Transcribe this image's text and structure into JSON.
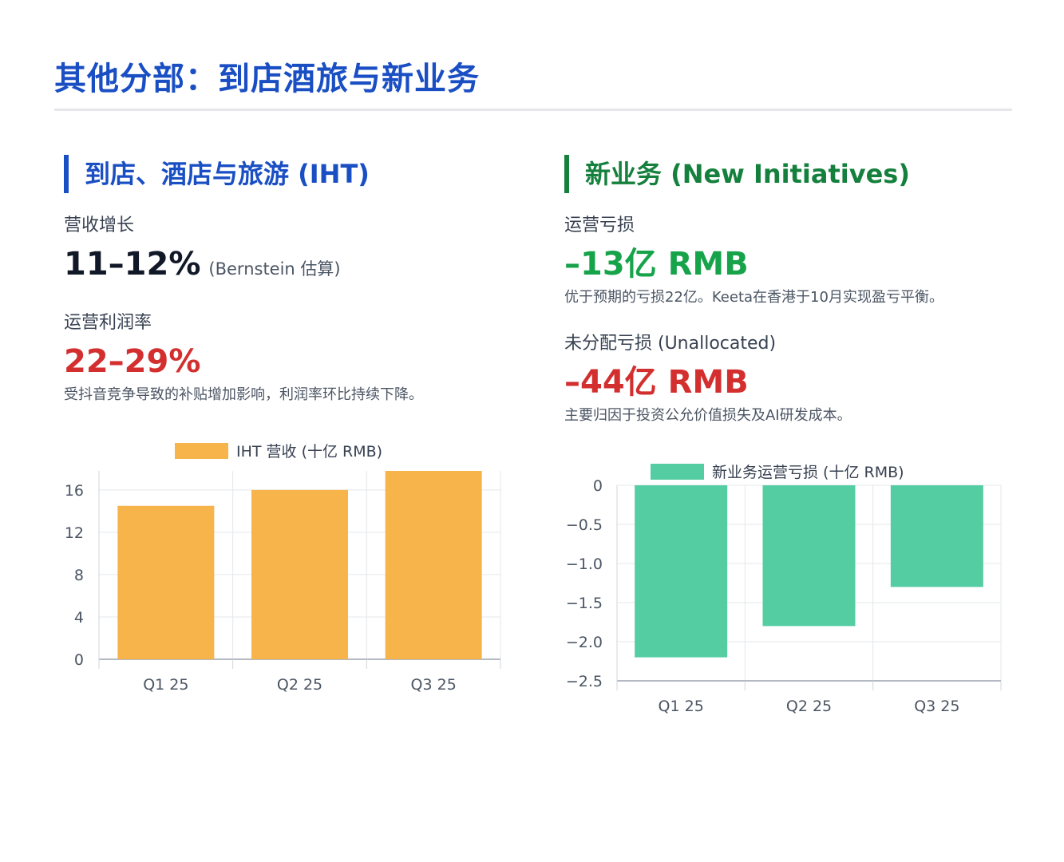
{
  "page": {
    "title": "其他分部：到店酒旅与新业务"
  },
  "iht": {
    "heading": "到店、酒店与旅游 (IHT)",
    "revenue_growth": {
      "label": "营收增长",
      "value": "11–12%",
      "note": "(Bernstein 估算)"
    },
    "op_margin": {
      "label": "运营利润率",
      "value": "22–29%",
      "note": "受抖音竞争导致的补贴增加影响，利润率环比持续下降。"
    }
  },
  "new_initiatives": {
    "heading": "新业务 (New Initiatives)",
    "op_loss": {
      "label": "运营亏损",
      "value": "–13亿 RMB",
      "note": "优于预期的亏损22亿。Keeta在香港于10月实现盈亏平衡。"
    },
    "unallocated": {
      "label": "未分配亏损 (Unallocated)",
      "value": "–44亿 RMB",
      "note": "主要归因于投资公允价值损失及AI研发成本。"
    }
  },
  "colors": {
    "title_blue": "#1a4fc4",
    "heading_green": "#15803d",
    "value_red": "#d32f2f",
    "value_green": "#16a34a",
    "iht_bar": "#f6b44b",
    "ni_bar": "#55cda3"
  },
  "chart_data": [
    {
      "type": "bar",
      "legend": "IHT 营收 (十亿 RMB)",
      "legend_position": "top",
      "categories": [
        "Q1 25",
        "Q2 25",
        "Q3 25"
      ],
      "series": [
        {
          "name": "IHT 营收 (十亿 RMB)",
          "values": [
            14.5,
            16.0,
            17.8
          ]
        }
      ],
      "yticks": [
        "0",
        "4",
        "8",
        "12",
        "16"
      ],
      "ytick_values": [
        0,
        4,
        8,
        12,
        16
      ],
      "ylim": [
        0,
        17.8
      ],
      "grid": true
    },
    {
      "type": "bar",
      "legend": "新业务运营亏损 (十亿 RMB)",
      "legend_position": "top",
      "categories": [
        "Q1 25",
        "Q2 25",
        "Q3 25"
      ],
      "series": [
        {
          "name": "新业务运营亏损 (十亿 RMB)",
          "values": [
            -2.2,
            -1.8,
            -1.3
          ]
        }
      ],
      "yticks": [
        "0",
        "−0.5",
        "−1.0",
        "−1.5",
        "−2.0",
        "−2.5"
      ],
      "ytick_values": [
        0,
        -0.5,
        -1.0,
        -1.5,
        -2.0,
        -2.5
      ],
      "ylim": [
        -2.5,
        0
      ],
      "grid": true
    }
  ]
}
